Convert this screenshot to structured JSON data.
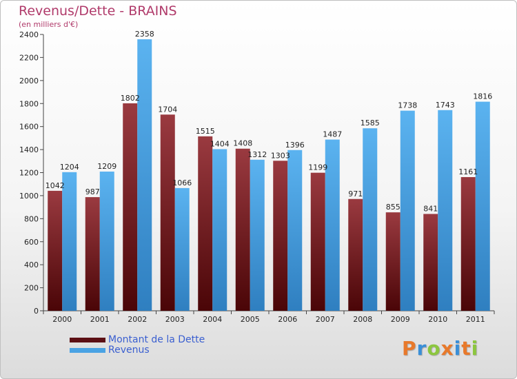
{
  "title": "Revenus/Dette - BRAINS",
  "subtitle": "(en milliers d'€)",
  "colors": {
    "dette": "#7a1f26",
    "revenus": "#4aa3e4",
    "title": "#b03a6a",
    "legend_text": "#3a5fd0"
  },
  "legend": [
    {
      "label": "Montant de la Dette",
      "color": "#5c0f14"
    },
    {
      "label": "Revenus",
      "color": "#4aa3e4"
    }
  ],
  "logo": {
    "text": "Proxiti"
  },
  "chart_data": {
    "type": "bar",
    "title": "Revenus/Dette - BRAINS",
    "subtitle": "(en milliers d'€)",
    "xlabel": "",
    "ylabel": "",
    "categories": [
      "2000",
      "2001",
      "2002",
      "2003",
      "2004",
      "2005",
      "2006",
      "2007",
      "2008",
      "2009",
      "2010",
      "2011"
    ],
    "series": [
      {
        "name": "Montant de la Dette",
        "values": [
          1042,
          987,
          1802,
          1704,
          1515,
          1408,
          1303,
          1199,
          971,
          855,
          841,
          1161
        ]
      },
      {
        "name": "Revenus",
        "values": [
          1204,
          1209,
          2358,
          1066,
          1404,
          1312,
          1396,
          1487,
          1585,
          1738,
          1743,
          1816
        ]
      }
    ],
    "ylim": [
      0,
      2400
    ],
    "yticks": [
      0,
      200,
      400,
      600,
      800,
      1000,
      1200,
      1400,
      1600,
      1800,
      2000,
      2200,
      2400
    ],
    "grid": false,
    "legend_position": "bottom-left"
  }
}
